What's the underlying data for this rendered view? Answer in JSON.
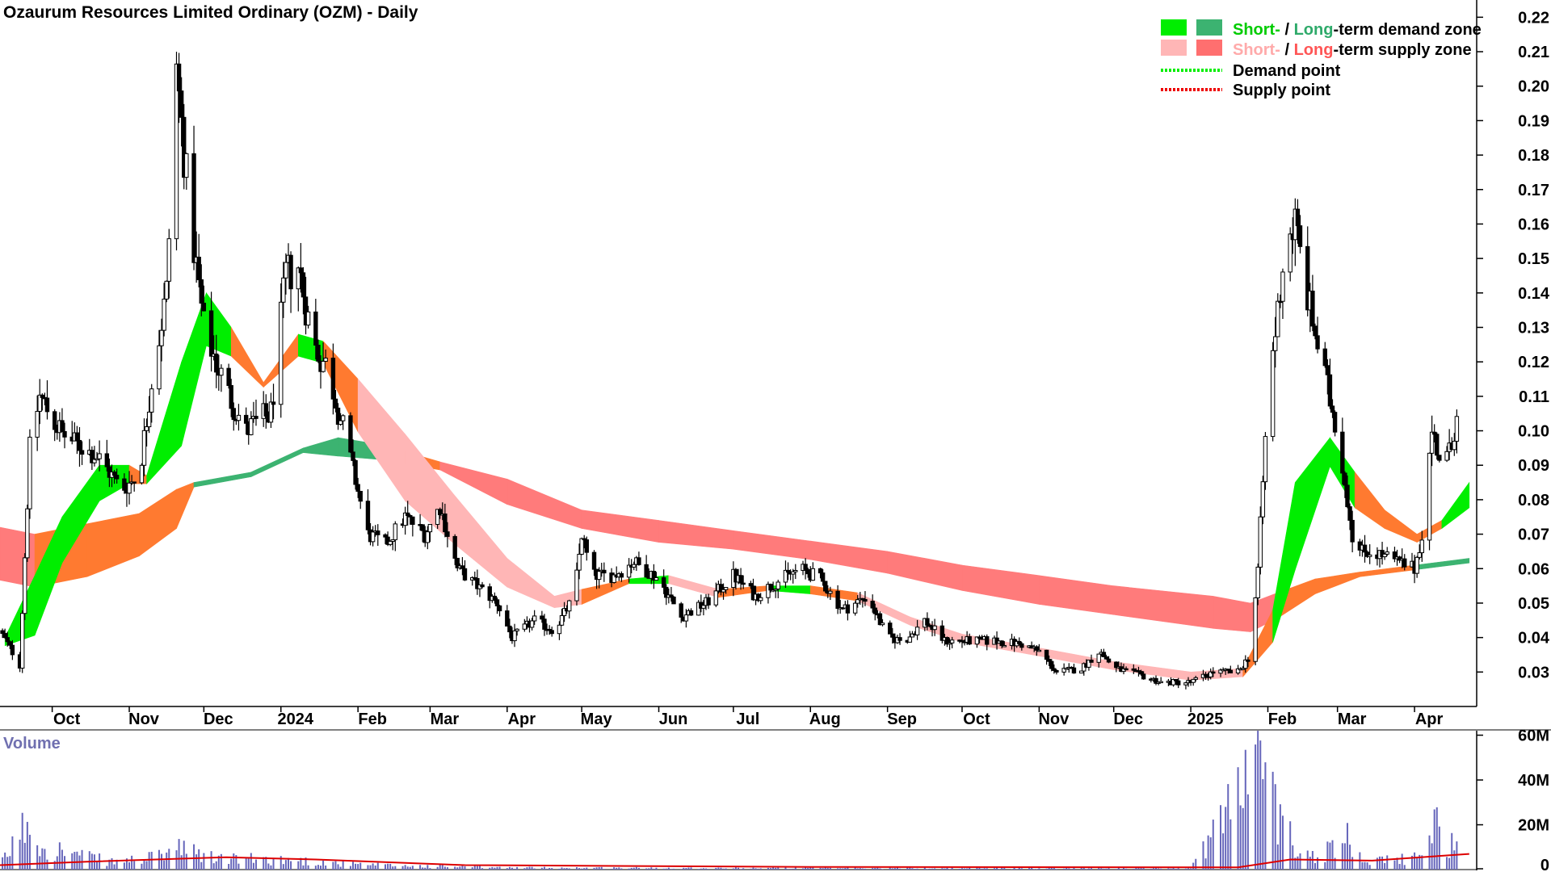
{
  "chart_data": {
    "type": "candlestick",
    "title": "Ozaurum Resources Limited Ordinary (OZM) - Daily",
    "volume_title": "Volume",
    "ylim": [
      0.02,
      0.225
    ],
    "yticks": [
      "0.22",
      "0.21",
      "0.20",
      "0.19",
      "0.18",
      "0.17",
      "0.16",
      "0.15",
      "0.14",
      "0.13",
      "0.12",
      "0.11",
      "0.10",
      "0.09",
      "0.08",
      "0.07",
      "0.06",
      "0.05",
      "0.04",
      "0.03"
    ],
    "ytick_values": [
      0.22,
      0.21,
      0.2,
      0.19,
      0.18,
      0.17,
      0.16,
      0.15,
      0.14,
      0.13,
      0.12,
      0.11,
      0.1,
      0.09,
      0.08,
      0.07,
      0.06,
      0.05,
      0.04,
      0.03
    ],
    "volume_ylim": [
      0,
      62000000
    ],
    "volume_ticks": [
      "60M",
      "40M",
      "20M",
      "0"
    ],
    "volume_tick_values": [
      60000000,
      40000000,
      20000000,
      0
    ],
    "x_start": "2023-09-10",
    "x_end": "2025-04-26",
    "xticks": [
      {
        "label": "Oct",
        "date": "2023-10-01"
      },
      {
        "label": "Nov",
        "date": "2023-11-01"
      },
      {
        "label": "Dec",
        "date": "2023-12-01"
      },
      {
        "label": "2024",
        "date": "2024-01-01"
      },
      {
        "label": "Feb",
        "date": "2024-02-01"
      },
      {
        "label": "Mar",
        "date": "2024-03-01"
      },
      {
        "label": "Apr",
        "date": "2024-04-01"
      },
      {
        "label": "May",
        "date": "2024-05-01"
      },
      {
        "label": "Jun",
        "date": "2024-06-01"
      },
      {
        "label": "Jul",
        "date": "2024-07-01"
      },
      {
        "label": "Aug",
        "date": "2024-08-01"
      },
      {
        "label": "Sep",
        "date": "2024-09-01"
      },
      {
        "label": "Oct",
        "date": "2024-10-01"
      },
      {
        "label": "Nov",
        "date": "2024-11-01"
      },
      {
        "label": "Dec",
        "date": "2024-12-01"
      },
      {
        "label": "2025",
        "date": "2025-01-01"
      },
      {
        "label": "Feb",
        "date": "2025-02-01"
      },
      {
        "label": "Mar",
        "date": "2025-03-01"
      },
      {
        "label": "Apr",
        "date": "2025-04-01"
      }
    ],
    "legend": {
      "placement": "top-right",
      "items": [
        {
          "prefix": "Short-",
          "sep": " / ",
          "mid": "Long",
          "suffix": "-term demand zone",
          "short_color": "#00ee00",
          "long_color": "#3cb371"
        },
        {
          "prefix": "Short-",
          "sep": " / ",
          "mid": "Long",
          "suffix": "-term supply zone",
          "short_color": "#ffb6b6",
          "long_color": "#ff6f6f"
        },
        {
          "label": "Demand point",
          "color": "#00ee00"
        },
        {
          "label": "Supply point",
          "color": "#ee0000"
        }
      ]
    },
    "colors": {
      "demand_short": "#00ee00",
      "demand_long": "#3cb371",
      "supply_short": "#ffb6b6",
      "supply_long": "#ff7b7b",
      "transition": "#ff7a30",
      "volume_bars": "#6666bb",
      "volume_ma": "#dd0000",
      "candle": "#000000"
    },
    "long_term_zone": [
      {
        "date": "2023-09-10",
        "upper": 0.072,
        "lower": 0.057,
        "kind": "supply"
      },
      {
        "date": "2023-09-24",
        "upper": 0.07,
        "lower": 0.055,
        "kind": "transition"
      },
      {
        "date": "2023-10-15",
        "upper": 0.073,
        "lower": 0.058,
        "kind": "transition"
      },
      {
        "date": "2023-11-05",
        "upper": 0.076,
        "lower": 0.064,
        "kind": "transition"
      },
      {
        "date": "2023-11-20",
        "upper": 0.083,
        "lower": 0.072,
        "kind": "transition"
      },
      {
        "date": "2023-11-27",
        "upper": 0.085,
        "lower": 0.084,
        "kind": "demand"
      },
      {
        "date": "2023-12-20",
        "upper": 0.088,
        "lower": 0.087,
        "kind": "demand"
      },
      {
        "date": "2024-01-10",
        "upper": 0.095,
        "lower": 0.094,
        "kind": "demand"
      },
      {
        "date": "2024-01-24",
        "upper": 0.098,
        "lower": 0.093,
        "kind": "demand"
      },
      {
        "date": "2024-02-10",
        "upper": 0.096,
        "lower": 0.092,
        "kind": "transition"
      },
      {
        "date": "2024-03-05",
        "upper": 0.091,
        "lower": 0.089,
        "kind": "supply"
      },
      {
        "date": "2024-04-01",
        "upper": 0.086,
        "lower": 0.079,
        "kind": "supply"
      },
      {
        "date": "2024-05-01",
        "upper": 0.077,
        "lower": 0.072,
        "kind": "supply"
      },
      {
        "date": "2024-06-01",
        "upper": 0.074,
        "lower": 0.068,
        "kind": "supply"
      },
      {
        "date": "2024-07-01",
        "upper": 0.071,
        "lower": 0.066,
        "kind": "supply"
      },
      {
        "date": "2024-08-01",
        "upper": 0.068,
        "lower": 0.063,
        "kind": "supply"
      },
      {
        "date": "2024-09-01",
        "upper": 0.065,
        "lower": 0.059,
        "kind": "supply"
      },
      {
        "date": "2024-10-01",
        "upper": 0.061,
        "lower": 0.054,
        "kind": "supply"
      },
      {
        "date": "2024-11-01",
        "upper": 0.058,
        "lower": 0.05,
        "kind": "supply"
      },
      {
        "date": "2024-12-01",
        "upper": 0.055,
        "lower": 0.047,
        "kind": "supply"
      },
      {
        "date": "2025-01-10",
        "upper": 0.052,
        "lower": 0.043,
        "kind": "supply"
      },
      {
        "date": "2025-01-25",
        "upper": 0.05,
        "lower": 0.042,
        "kind": "supply"
      },
      {
        "date": "2025-02-05",
        "upper": 0.053,
        "lower": 0.046,
        "kind": "transition"
      },
      {
        "date": "2025-02-20",
        "upper": 0.057,
        "lower": 0.053,
        "kind": "transition"
      },
      {
        "date": "2025-03-10",
        "upper": 0.059,
        "lower": 0.058,
        "kind": "transition"
      },
      {
        "date": "2025-04-01",
        "upper": 0.061,
        "lower": 0.06,
        "kind": "demand"
      },
      {
        "date": "2025-04-23",
        "upper": 0.063,
        "lower": 0.062,
        "kind": "demand"
      }
    ],
    "short_term_zone": [
      {
        "date": "2023-09-12",
        "upper": 0.04,
        "lower": 0.038,
        "kind": "demand"
      },
      {
        "date": "2023-09-24",
        "upper": 0.058,
        "lower": 0.041,
        "kind": "demand"
      },
      {
        "date": "2023-10-05",
        "upper": 0.075,
        "lower": 0.062,
        "kind": "demand"
      },
      {
        "date": "2023-10-20",
        "upper": 0.09,
        "lower": 0.08,
        "kind": "demand"
      },
      {
        "date": "2023-11-01",
        "upper": 0.09,
        "lower": 0.085,
        "kind": "transition"
      },
      {
        "date": "2023-11-08",
        "upper": 0.087,
        "lower": 0.085,
        "kind": "demand"
      },
      {
        "date": "2023-11-22",
        "upper": 0.12,
        "lower": 0.096,
        "kind": "demand"
      },
      {
        "date": "2023-12-02",
        "upper": 0.14,
        "lower": 0.125,
        "kind": "demand"
      },
      {
        "date": "2023-12-12",
        "upper": 0.13,
        "lower": 0.122,
        "kind": "transition"
      },
      {
        "date": "2023-12-25",
        "upper": 0.114,
        "lower": 0.113,
        "kind": "transition"
      },
      {
        "date": "2024-01-08",
        "upper": 0.128,
        "lower": 0.122,
        "kind": "demand"
      },
      {
        "date": "2024-01-18",
        "upper": 0.126,
        "lower": 0.12,
        "kind": "transition"
      },
      {
        "date": "2024-02-01",
        "upper": 0.115,
        "lower": 0.1,
        "kind": "supply"
      },
      {
        "date": "2024-02-20",
        "upper": 0.099,
        "lower": 0.08,
        "kind": "supply"
      },
      {
        "date": "2024-03-10",
        "upper": 0.082,
        "lower": 0.068,
        "kind": "supply"
      },
      {
        "date": "2024-04-01",
        "upper": 0.063,
        "lower": 0.055,
        "kind": "supply"
      },
      {
        "date": "2024-04-20",
        "upper": 0.052,
        "lower": 0.049,
        "kind": "supply"
      },
      {
        "date": "2024-05-01",
        "upper": 0.054,
        "lower": 0.05,
        "kind": "transition"
      },
      {
        "date": "2024-05-20",
        "upper": 0.057,
        "lower": 0.056,
        "kind": "demand"
      },
      {
        "date": "2024-06-05",
        "upper": 0.058,
        "lower": 0.056,
        "kind": "supply"
      },
      {
        "date": "2024-06-25",
        "upper": 0.054,
        "lower": 0.052,
        "kind": "transition"
      },
      {
        "date": "2024-07-15",
        "upper": 0.055,
        "lower": 0.054,
        "kind": "demand"
      },
      {
        "date": "2024-08-01",
        "upper": 0.055,
        "lower": 0.053,
        "kind": "transition"
      },
      {
        "date": "2024-08-20",
        "upper": 0.053,
        "lower": 0.051,
        "kind": "supply"
      },
      {
        "date": "2024-09-10",
        "upper": 0.046,
        "lower": 0.044,
        "kind": "supply"
      },
      {
        "date": "2024-10-01",
        "upper": 0.041,
        "lower": 0.039,
        "kind": "supply"
      },
      {
        "date": "2024-11-01",
        "upper": 0.037,
        "lower": 0.035,
        "kind": "supply"
      },
      {
        "date": "2024-12-01",
        "upper": 0.033,
        "lower": 0.031,
        "kind": "supply"
      },
      {
        "date": "2025-01-01",
        "upper": 0.03,
        "lower": 0.028,
        "kind": "supply"
      },
      {
        "date": "2025-01-22",
        "upper": 0.031,
        "lower": 0.029,
        "kind": "transition"
      },
      {
        "date": "2025-02-03",
        "upper": 0.048,
        "lower": 0.039,
        "kind": "demand"
      },
      {
        "date": "2025-02-12",
        "upper": 0.085,
        "lower": 0.06,
        "kind": "demand"
      },
      {
        "date": "2025-02-26",
        "upper": 0.098,
        "lower": 0.09,
        "kind": "demand"
      },
      {
        "date": "2025-03-08",
        "upper": 0.088,
        "lower": 0.078,
        "kind": "transition"
      },
      {
        "date": "2025-03-20",
        "upper": 0.077,
        "lower": 0.072,
        "kind": "transition"
      },
      {
        "date": "2025-04-02",
        "upper": 0.07,
        "lower": 0.068,
        "kind": "transition"
      },
      {
        "date": "2025-04-12",
        "upper": 0.074,
        "lower": 0.072,
        "kind": "demand"
      },
      {
        "date": "2025-04-23",
        "upper": 0.085,
        "lower": 0.078,
        "kind": "demand"
      }
    ],
    "price_path": [
      {
        "date": "2023-09-10",
        "close": 0.042
      },
      {
        "date": "2023-09-18",
        "close": 0.032
      },
      {
        "date": "2023-09-22",
        "close": 0.095
      },
      {
        "date": "2023-09-26",
        "close": 0.11
      },
      {
        "date": "2023-10-05",
        "close": 0.099
      },
      {
        "date": "2023-10-20",
        "close": 0.092
      },
      {
        "date": "2023-10-29",
        "close": 0.083
      },
      {
        "date": "2023-11-05",
        "close": 0.087
      },
      {
        "date": "2023-11-10",
        "close": 0.115
      },
      {
        "date": "2023-11-16",
        "close": 0.14
      },
      {
        "date": "2023-11-20",
        "close": 0.205
      },
      {
        "date": "2023-11-25",
        "close": 0.165
      },
      {
        "date": "2023-12-01",
        "close": 0.13
      },
      {
        "date": "2023-12-10",
        "close": 0.112
      },
      {
        "date": "2023-12-18",
        "close": 0.1
      },
      {
        "date": "2023-12-28",
        "close": 0.105
      },
      {
        "date": "2024-01-03",
        "close": 0.145
      },
      {
        "date": "2024-01-08",
        "close": 0.148
      },
      {
        "date": "2024-01-14",
        "close": 0.125
      },
      {
        "date": "2024-01-20",
        "close": 0.118
      },
      {
        "date": "2024-01-28",
        "close": 0.095
      },
      {
        "date": "2024-02-05",
        "close": 0.07
      },
      {
        "date": "2024-02-12",
        "close": 0.067
      },
      {
        "date": "2024-02-20",
        "close": 0.075
      },
      {
        "date": "2024-02-28",
        "close": 0.07
      },
      {
        "date": "2024-03-05",
        "close": 0.078
      },
      {
        "date": "2024-03-12",
        "close": 0.06
      },
      {
        "date": "2024-03-20",
        "close": 0.055
      },
      {
        "date": "2024-03-28",
        "close": 0.05
      },
      {
        "date": "2024-04-03",
        "close": 0.04
      },
      {
        "date": "2024-04-12",
        "close": 0.045
      },
      {
        "date": "2024-04-20",
        "close": 0.042
      },
      {
        "date": "2024-04-28",
        "close": 0.052
      },
      {
        "date": "2024-05-01",
        "close": 0.07
      },
      {
        "date": "2024-05-05",
        "close": 0.058
      },
      {
        "date": "2024-05-14",
        "close": 0.058
      },
      {
        "date": "2024-05-22",
        "close": 0.062
      },
      {
        "date": "2024-06-01",
        "close": 0.057
      },
      {
        "date": "2024-06-10",
        "close": 0.046
      },
      {
        "date": "2024-06-20",
        "close": 0.05
      },
      {
        "date": "2024-07-01",
        "close": 0.058
      },
      {
        "date": "2024-07-10",
        "close": 0.052
      },
      {
        "date": "2024-07-18",
        "close": 0.056
      },
      {
        "date": "2024-07-28",
        "close": 0.06
      },
      {
        "date": "2024-08-05",
        "close": 0.057
      },
      {
        "date": "2024-08-14",
        "close": 0.048
      },
      {
        "date": "2024-08-24",
        "close": 0.052
      },
      {
        "date": "2024-09-01",
        "close": 0.04
      },
      {
        "date": "2024-09-08",
        "close": 0.039
      },
      {
        "date": "2024-09-16",
        "close": 0.045
      },
      {
        "date": "2024-09-24",
        "close": 0.039
      },
      {
        "date": "2024-10-05",
        "close": 0.039
      },
      {
        "date": "2024-10-15",
        "close": 0.039
      },
      {
        "date": "2024-10-25",
        "close": 0.038
      },
      {
        "date": "2024-11-01",
        "close": 0.036
      },
      {
        "date": "2024-11-08",
        "close": 0.03
      },
      {
        "date": "2024-11-18",
        "close": 0.031
      },
      {
        "date": "2024-11-25",
        "close": 0.036
      },
      {
        "date": "2024-12-02",
        "close": 0.031
      },
      {
        "date": "2024-12-12",
        "close": 0.029
      },
      {
        "date": "2024-12-20",
        "close": 0.027
      },
      {
        "date": "2025-01-01",
        "close": 0.027
      },
      {
        "date": "2025-01-10",
        "close": 0.03
      },
      {
        "date": "2025-01-20",
        "close": 0.03
      },
      {
        "date": "2025-01-25",
        "close": 0.035
      },
      {
        "date": "2025-01-28",
        "close": 0.06
      },
      {
        "date": "2025-02-01",
        "close": 0.11
      },
      {
        "date": "2025-02-05",
        "close": 0.135
      },
      {
        "date": "2025-02-08",
        "close": 0.155
      },
      {
        "date": "2025-02-12",
        "close": 0.16
      },
      {
        "date": "2025-02-18",
        "close": 0.135
      },
      {
        "date": "2025-02-24",
        "close": 0.115
      },
      {
        "date": "2025-03-01",
        "close": 0.1
      },
      {
        "date": "2025-03-05",
        "close": 0.08
      },
      {
        "date": "2025-03-08",
        "close": 0.065
      },
      {
        "date": "2025-03-15",
        "close": 0.065
      },
      {
        "date": "2025-03-25",
        "close": 0.062
      },
      {
        "date": "2025-04-01",
        "close": 0.06
      },
      {
        "date": "2025-04-04",
        "close": 0.07
      },
      {
        "date": "2025-04-08",
        "close": 0.1
      },
      {
        "date": "2025-04-12",
        "close": 0.09
      },
      {
        "date": "2025-04-16",
        "close": 0.095
      },
      {
        "date": "2025-04-20",
        "close": 0.12
      }
    ],
    "volume_profile": [
      {
        "date": "2023-09-10",
        "volume": 2000000
      },
      {
        "date": "2023-09-22",
        "volume": 27000000
      },
      {
        "date": "2023-09-26",
        "volume": 13000000
      },
      {
        "date": "2023-10-10",
        "volume": 8000000
      },
      {
        "date": "2023-10-25",
        "volume": 4000000
      },
      {
        "date": "2023-11-10",
        "volume": 6000000
      },
      {
        "date": "2023-11-20",
        "volume": 11000000
      },
      {
        "date": "2023-12-05",
        "volume": 6000000
      },
      {
        "date": "2024-01-05",
        "volume": 5000000
      },
      {
        "date": "2024-02-01",
        "volume": 2500000
      },
      {
        "date": "2024-04-01",
        "volume": 1000000
      },
      {
        "date": "2024-07-01",
        "volume": 800000
      },
      {
        "date": "2024-10-01",
        "volume": 700000
      },
      {
        "date": "2025-01-01",
        "volume": 900000
      },
      {
        "date": "2025-01-28",
        "volume": 58000000
      },
      {
        "date": "2025-02-03",
        "volume": 36000000
      },
      {
        "date": "2025-02-10",
        "volume": 17000000
      },
      {
        "date": "2025-02-20",
        "volume": 6000000
      },
      {
        "date": "2025-03-05",
        "volume": 17000000
      },
      {
        "date": "2025-03-15",
        "volume": 4000000
      },
      {
        "date": "2025-04-01",
        "volume": 6000000
      },
      {
        "date": "2025-04-08",
        "volume": 24000000
      },
      {
        "date": "2025-04-20",
        "volume": 8000000
      }
    ],
    "volume_ma": [
      {
        "date": "2023-09-10",
        "value": 2000000
      },
      {
        "date": "2023-10-15",
        "value": 3500000
      },
      {
        "date": "2023-12-10",
        "value": 5500000
      },
      {
        "date": "2024-01-15",
        "value": 4500000
      },
      {
        "date": "2024-03-15",
        "value": 2000000
      },
      {
        "date": "2024-08-01",
        "value": 1200000
      },
      {
        "date": "2025-01-20",
        "value": 1000000
      },
      {
        "date": "2025-02-10",
        "value": 4500000
      },
      {
        "date": "2025-03-15",
        "value": 4000000
      },
      {
        "date": "2025-04-23",
        "value": 7000000
      }
    ]
  }
}
